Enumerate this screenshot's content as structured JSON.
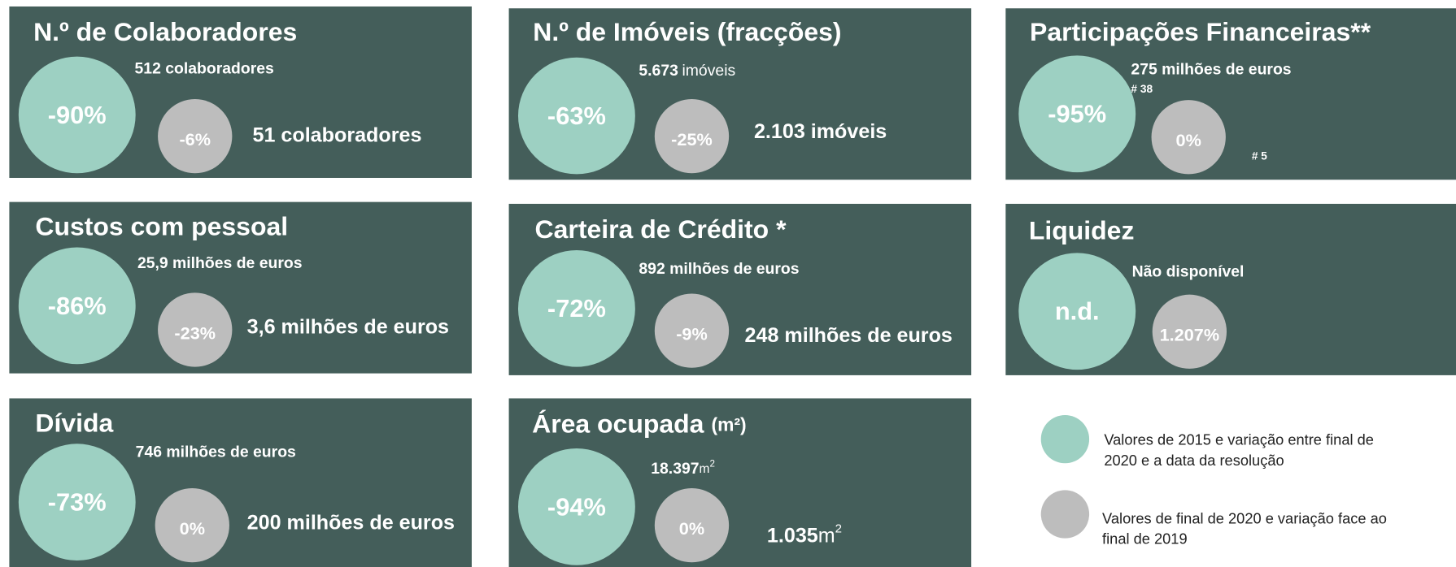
{
  "cards": [
    {
      "title": "N.º de Colaboradores",
      "big": "-90%",
      "top": {
        "value": "512 colaboradores"
      },
      "small": "-6%",
      "bottom": {
        "value": "51 colaboradores"
      }
    },
    {
      "title": "N.º de Imóveis (fracções)",
      "big": "-63%",
      "top": {
        "value": "5.673",
        "unit": "imóveis"
      },
      "small": "-25%",
      "bottom": {
        "value": "2.103 imóveis"
      }
    },
    {
      "title": "Participações Financeiras**",
      "big": "-95%",
      "top": {
        "value": "275  milhões de euros"
      },
      "note_top": "# 38",
      "small": "0%",
      "note_bottom": "# 5"
    },
    {
      "title": "Custos com pessoal",
      "big": "-86%",
      "top": {
        "value": "25,9 milhões de euros"
      },
      "small": "-23%",
      "bottom": {
        "value": "3,6 milhões de euros"
      }
    },
    {
      "title": "Carteira de Crédito *",
      "big": "-72%",
      "top": {
        "value": "892 milhões de euros"
      },
      "small": "-9%",
      "bottom": {
        "value": "248 milhões de euros"
      }
    },
    {
      "title": "Liquidez",
      "big": "n.d.",
      "top": {
        "value": "Não disponível"
      },
      "small": "1.207%"
    },
    {
      "title": "Dívida",
      "big": "-73%",
      "top": {
        "value": "746 milhões de euros"
      },
      "small": "0%",
      "bottom": {
        "value": "200 milhões de euros"
      }
    },
    {
      "title": "Área ocupada",
      "title_unit": "(m²)",
      "big": "-94%",
      "top": {
        "value": "18.397",
        "unit": "m",
        "unit_sup": "2"
      },
      "small": "0%",
      "bottom": {
        "value": "1.035",
        "unit": "m",
        "unit_sup": "2"
      }
    }
  ],
  "legend": [
    {
      "lines": [
        "Valores de 2015 e variação entre final de",
        "2020 e a data da resolução"
      ]
    },
    {
      "lines": [
        "Valores de final de 2020 e variação face ao",
        "final de 2019"
      ]
    }
  ]
}
